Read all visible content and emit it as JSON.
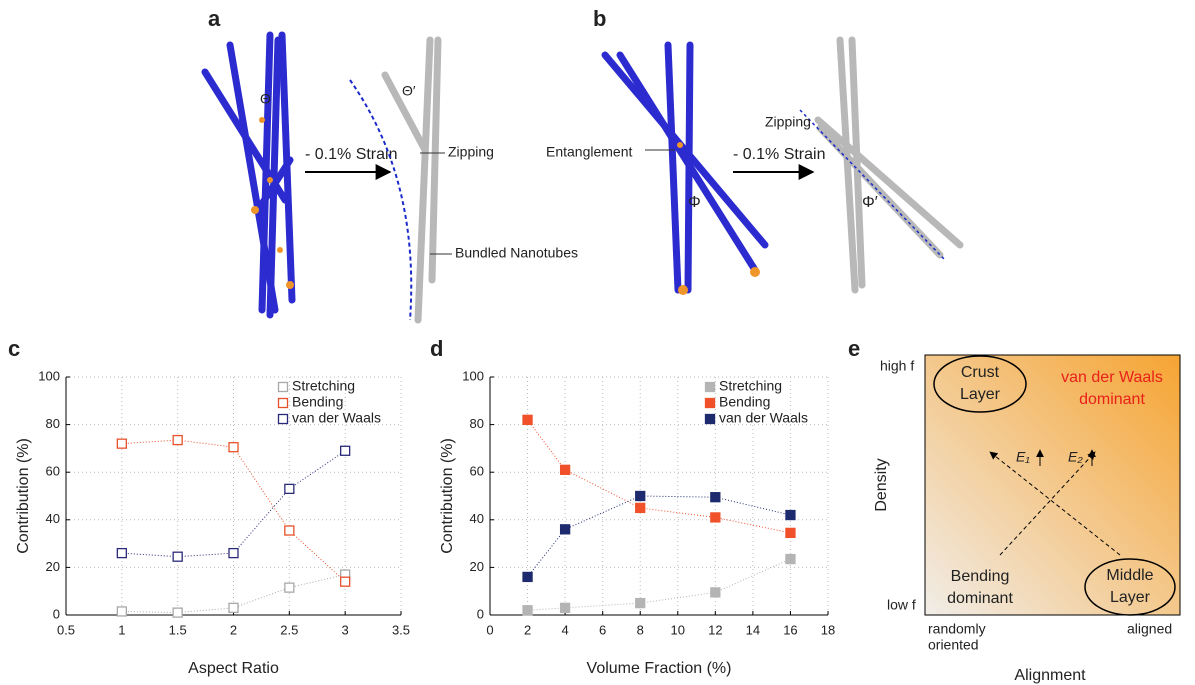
{
  "panels": {
    "a": "a",
    "b": "b",
    "c": "c",
    "d": "d",
    "e": "e"
  },
  "illustration_a": {
    "theta": "Θ",
    "theta_prime": "Θ′",
    "strain": "- 0.1% Strain",
    "zipping": "Zipping",
    "bundled": "Bundled Nanotubes"
  },
  "illustration_b": {
    "entanglement": "Entanglement",
    "phi": "Φ",
    "phi_prime": "Φ′",
    "strain": "- 0.1% Strain",
    "zipping": "Zipping"
  },
  "diagram_e": {
    "y_high": "high f",
    "y_low": "low f",
    "y_title": "Density",
    "x_left_1": "randomly",
    "x_left_2": "oriented",
    "x_right": "aligned",
    "x_title": "Alignment",
    "crust_1": "Crust",
    "crust_2": "Layer",
    "vdw_1": "van der Waals",
    "vdw_2": "dominant",
    "bending_1": "Bending",
    "bending_2": "dominant",
    "middle_1": "Middle",
    "middle_2": "Layer",
    "e1": "E₁",
    "e2": "E₂"
  },
  "chart_data": [
    {
      "type": "line",
      "xlabel": "Aspect Ratio",
      "ylabel": "Contribution (%)",
      "marker_fill": false,
      "grid": true,
      "legend": "upper right",
      "x": [
        1,
        1.5,
        2,
        2.5,
        3
      ],
      "xlim": [
        0.5,
        3.5
      ],
      "xticks": [
        0.5,
        1,
        1.5,
        2,
        2.5,
        3,
        3.5
      ],
      "ylim": [
        0,
        100
      ],
      "yticks": [
        0,
        20,
        40,
        60,
        80,
        100
      ],
      "series": [
        {
          "name": "Stretching",
          "color": "#a8a8a8",
          "values": [
            1.5,
            1,
            3,
            11.5,
            17
          ]
        },
        {
          "name": "Bending",
          "color": "#e8502a",
          "values": [
            72,
            73.5,
            70.5,
            35.5,
            14
          ]
        },
        {
          "name": "van der Waals",
          "color": "#2a2a7a",
          "values": [
            26,
            24.5,
            26,
            53,
            69
          ]
        }
      ]
    },
    {
      "type": "line",
      "xlabel": "Volume Fraction (%)",
      "ylabel": "Contribution (%)",
      "marker_fill": true,
      "grid": true,
      "legend": "upper right",
      "x": [
        2,
        4,
        8,
        12,
        16
      ],
      "xlim": [
        0,
        18
      ],
      "xticks": [
        0,
        2,
        4,
        6,
        8,
        10,
        12,
        14,
        16,
        18
      ],
      "ylim": [
        0,
        100
      ],
      "yticks": [
        0,
        20,
        40,
        60,
        80,
        100
      ],
      "series": [
        {
          "name": "Stretching",
          "color": "#b4b4b4",
          "values": [
            2,
            3,
            5,
            9.5,
            23.5
          ]
        },
        {
          "name": "Bending",
          "color": "#f0502a",
          "values": [
            82,
            61,
            45,
            41,
            34.5
          ]
        },
        {
          "name": "van der Waals",
          "color": "#1e2a6e",
          "values": [
            16,
            36,
            50,
            49.5,
            42
          ]
        }
      ]
    }
  ]
}
